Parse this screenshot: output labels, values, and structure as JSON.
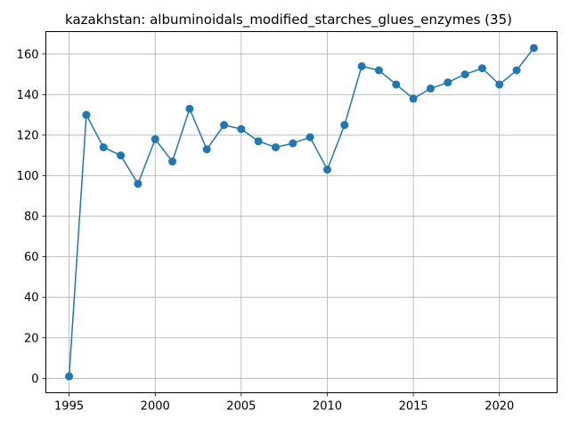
{
  "chart_data": {
    "type": "line",
    "title": "kazakhstan: albuminoidals_modified_starches_glues_enzymes (35)",
    "xlabel": "",
    "ylabel": "",
    "x": [
      1995,
      1996,
      1997,
      1998,
      1999,
      2000,
      2001,
      2002,
      2003,
      2004,
      2005,
      2006,
      2007,
      2008,
      2009,
      2010,
      2011,
      2012,
      2013,
      2014,
      2015,
      2016,
      2017,
      2018,
      2019,
      2020,
      2021,
      2022
    ],
    "series": [
      {
        "values": [
          1,
          130,
          114,
          110,
          96,
          118,
          107,
          133,
          113,
          125,
          123,
          117,
          114,
          116,
          119,
          103,
          125,
          154,
          152,
          145,
          138,
          143,
          146,
          150,
          153,
          145,
          152,
          163
        ],
        "color": "#1f77b4"
      }
    ],
    "xlim": [
      1993.65,
      2023.35
    ],
    "ylim": [
      -7.1,
      171.1
    ],
    "xticks": [
      1995,
      2000,
      2005,
      2010,
      2015,
      2020
    ],
    "yticks": [
      0,
      20,
      40,
      60,
      80,
      100,
      120,
      140,
      160
    ],
    "grid": true,
    "marker": "circle"
  }
}
